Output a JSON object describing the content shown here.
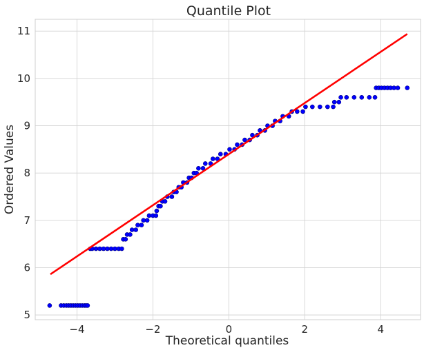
{
  "chart_data": {
    "type": "scatter",
    "title": "Quantile Plot",
    "xlabel": "Theoretical quantiles",
    "ylabel": "Ordered Values",
    "xlim": [
      -5.1,
      5.05
    ],
    "ylim": [
      4.9,
      11.25
    ],
    "xticks": [
      -4,
      -2,
      0,
      2,
      4
    ],
    "yticks": [
      5,
      6,
      7,
      8,
      9,
      10,
      11
    ],
    "xtick_labels": [
      "−4",
      "−2",
      "0",
      "2",
      "4"
    ],
    "ytick_labels": [
      "5",
      "6",
      "7",
      "8",
      "9",
      "10",
      "11"
    ],
    "grid": true,
    "marker_color": "#0000ff",
    "marker_edge_color": "#000080",
    "line_color": "#ff0000",
    "fit_line": {
      "x": [
        -4.7,
        4.7
      ],
      "y": [
        5.86,
        10.94
      ]
    },
    "series": [
      {
        "points": [
          [
            -4.72,
            5.2
          ],
          [
            -4.42,
            5.2
          ],
          [
            -4.35,
            5.2
          ],
          [
            -4.28,
            5.2
          ],
          [
            -4.22,
            5.2
          ],
          [
            -4.16,
            5.2
          ],
          [
            -4.1,
            5.2
          ],
          [
            -4.04,
            5.2
          ],
          [
            -3.98,
            5.2
          ],
          [
            -3.92,
            5.2
          ],
          [
            -3.86,
            5.2
          ],
          [
            -3.8,
            5.2
          ],
          [
            -3.76,
            5.2
          ],
          [
            -3.72,
            5.2
          ],
          [
            -3.65,
            6.4
          ],
          [
            -3.6,
            6.4
          ],
          [
            -3.5,
            6.4
          ],
          [
            -3.4,
            6.4
          ],
          [
            -3.3,
            6.4
          ],
          [
            -3.2,
            6.4
          ],
          [
            -3.1,
            6.4
          ],
          [
            -3.0,
            6.4
          ],
          [
            -2.9,
            6.4
          ],
          [
            -2.82,
            6.4
          ],
          [
            -2.78,
            6.6
          ],
          [
            -2.72,
            6.6
          ],
          [
            -2.68,
            6.7
          ],
          [
            -2.6,
            6.7
          ],
          [
            -2.55,
            6.8
          ],
          [
            -2.45,
            6.8
          ],
          [
            -2.4,
            6.9
          ],
          [
            -2.3,
            6.9
          ],
          [
            -2.25,
            7.0
          ],
          [
            -2.15,
            7.0
          ],
          [
            -2.1,
            7.1
          ],
          [
            -2.0,
            7.1
          ],
          [
            -1.92,
            7.1
          ],
          [
            -1.9,
            7.2
          ],
          [
            -1.85,
            7.3
          ],
          [
            -1.8,
            7.3
          ],
          [
            -1.75,
            7.4
          ],
          [
            -1.68,
            7.4
          ],
          [
            -1.62,
            7.5
          ],
          [
            -1.5,
            7.5
          ],
          [
            -1.45,
            7.6
          ],
          [
            -1.38,
            7.6
          ],
          [
            -1.32,
            7.7
          ],
          [
            -1.25,
            7.7
          ],
          [
            -1.2,
            7.8
          ],
          [
            -1.1,
            7.8
          ],
          [
            -1.05,
            7.9
          ],
          [
            -0.98,
            7.9
          ],
          [
            -0.92,
            8.0
          ],
          [
            -0.85,
            8.0
          ],
          [
            -0.8,
            8.1
          ],
          [
            -0.68,
            8.1
          ],
          [
            -0.62,
            8.2
          ],
          [
            -0.48,
            8.2
          ],
          [
            -0.42,
            8.3
          ],
          [
            -0.3,
            8.3
          ],
          [
            -0.22,
            8.4
          ],
          [
            -0.08,
            8.4
          ],
          [
            0.02,
            8.5
          ],
          [
            0.15,
            8.5
          ],
          [
            0.22,
            8.6
          ],
          [
            0.35,
            8.6
          ],
          [
            0.42,
            8.7
          ],
          [
            0.55,
            8.7
          ],
          [
            0.62,
            8.8
          ],
          [
            0.75,
            8.8
          ],
          [
            0.82,
            8.9
          ],
          [
            0.95,
            8.9
          ],
          [
            1.02,
            9.0
          ],
          [
            1.15,
            9.0
          ],
          [
            1.22,
            9.1
          ],
          [
            1.35,
            9.1
          ],
          [
            1.42,
            9.2
          ],
          [
            1.58,
            9.2
          ],
          [
            1.66,
            9.3
          ],
          [
            1.8,
            9.3
          ],
          [
            1.95,
            9.3
          ],
          [
            2.02,
            9.4
          ],
          [
            2.2,
            9.4
          ],
          [
            2.4,
            9.4
          ],
          [
            2.6,
            9.4
          ],
          [
            2.75,
            9.4
          ],
          [
            2.78,
            9.5
          ],
          [
            2.9,
            9.5
          ],
          [
            2.95,
            9.6
          ],
          [
            3.1,
            9.6
          ],
          [
            3.3,
            9.6
          ],
          [
            3.5,
            9.6
          ],
          [
            3.7,
            9.6
          ],
          [
            3.85,
            9.6
          ],
          [
            3.88,
            9.8
          ],
          [
            3.95,
            9.8
          ],
          [
            4.02,
            9.8
          ],
          [
            4.1,
            9.8
          ],
          [
            4.18,
            9.8
          ],
          [
            4.26,
            9.8
          ],
          [
            4.35,
            9.8
          ],
          [
            4.45,
            9.8
          ],
          [
            4.7,
            9.8
          ]
        ]
      }
    ]
  }
}
